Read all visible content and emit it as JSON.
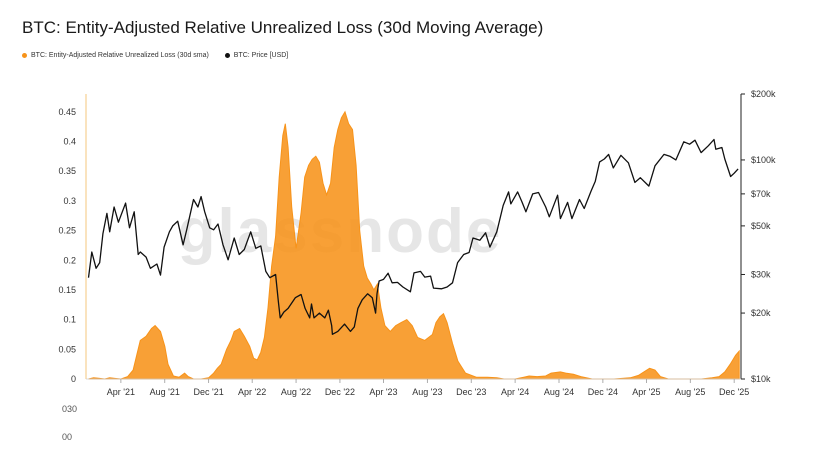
{
  "page": {
    "title": "BTC: Entity-Adjusted Relative Unrealized Loss (30d Moving Average)"
  },
  "watermark": "glassnode",
  "legend": [
    {
      "label": "BTC: Entity-Adjusted Relative Unrealized Loss (30d sma)",
      "color": "#f7931a"
    },
    {
      "label": "BTC: Price [USD]",
      "color": "#111111"
    }
  ],
  "truncated_labels": [
    "030",
    "00"
  ],
  "chart_data": {
    "type": "area",
    "title": "BTC: Entity-Adjusted Relative Unrealized Loss (30d Moving Average)",
    "legend_position": "top-left",
    "grid": false,
    "x_ticks": [
      "Apr '21",
      "Aug '21",
      "Dec '21",
      "Apr '22",
      "Aug '22",
      "Dec '22",
      "Apr '23",
      "Aug '23",
      "Dec '23",
      "Apr '24",
      "Aug '24",
      "Dec '24",
      "Apr '25",
      "Aug '25",
      "Dec '25"
    ],
    "y_left": {
      "ticks": [
        0,
        0.05,
        0.1,
        0.15,
        0.2,
        0.25,
        0.3,
        0.35,
        0.4,
        0.45
      ],
      "lim": [
        0,
        0.48
      ]
    },
    "y_right": {
      "scale": "log",
      "ticks": [
        "$10k",
        "$20k",
        "$30k",
        "$50k",
        "$70k",
        "$100k",
        "$200k"
      ],
      "tick_values": [
        10000,
        20000,
        30000,
        50000,
        70000,
        100000,
        200000
      ],
      "lim": [
        10000,
        200000
      ]
    },
    "series": [
      {
        "name": "BTC: Entity-Adjusted Relative Unrealized Loss (30d sma)",
        "axis": "left",
        "color": "#f7931a",
        "points": [
          [
            "2021-01-01",
            0
          ],
          [
            "2021-01-15",
            0.002
          ],
          [
            "2021-02-01",
            0.001
          ],
          [
            "2021-02-15",
            0
          ],
          [
            "2021-03-01",
            0.002
          ],
          [
            "2021-03-15",
            0.001
          ],
          [
            "2021-04-01",
            0
          ],
          [
            "2021-04-20",
            0.004
          ],
          [
            "2021-05-05",
            0.015
          ],
          [
            "2021-05-15",
            0.04
          ],
          [
            "2021-05-25",
            0.065
          ],
          [
            "2021-06-10",
            0.072
          ],
          [
            "2021-06-25",
            0.085
          ],
          [
            "2021-07-05",
            0.09
          ],
          [
            "2021-07-20",
            0.08
          ],
          [
            "2021-08-01",
            0.055
          ],
          [
            "2021-08-10",
            0.025
          ],
          [
            "2021-08-25",
            0.005
          ],
          [
            "2021-09-10",
            0.003
          ],
          [
            "2021-09-25",
            0.01
          ],
          [
            "2021-10-05",
            0.004
          ],
          [
            "2021-10-20",
            0
          ],
          [
            "2021-11-10",
            0
          ],
          [
            "2021-12-01",
            0.002
          ],
          [
            "2021-12-15",
            0.01
          ],
          [
            "2021-12-25",
            0.018
          ],
          [
            "2022-01-05",
            0.025
          ],
          [
            "2022-01-20",
            0.05
          ],
          [
            "2022-02-01",
            0.065
          ],
          [
            "2022-02-10",
            0.08
          ],
          [
            "2022-02-25",
            0.085
          ],
          [
            "2022-03-10",
            0.072
          ],
          [
            "2022-03-25",
            0.055
          ],
          [
            "2022-04-05",
            0.035
          ],
          [
            "2022-04-15",
            0.032
          ],
          [
            "2022-04-25",
            0.045
          ],
          [
            "2022-05-05",
            0.07
          ],
          [
            "2022-05-15",
            0.12
          ],
          [
            "2022-05-25",
            0.19
          ],
          [
            "2022-06-05",
            0.24
          ],
          [
            "2022-06-15",
            0.34
          ],
          [
            "2022-06-25",
            0.41
          ],
          [
            "2022-07-02",
            0.43
          ],
          [
            "2022-07-10",
            0.39
          ],
          [
            "2022-07-20",
            0.29
          ],
          [
            "2022-08-01",
            0.22
          ],
          [
            "2022-08-15",
            0.28
          ],
          [
            "2022-08-25",
            0.34
          ],
          [
            "2022-09-05",
            0.36
          ],
          [
            "2022-09-15",
            0.37
          ],
          [
            "2022-09-25",
            0.375
          ],
          [
            "2022-10-05",
            0.365
          ],
          [
            "2022-10-15",
            0.33
          ],
          [
            "2022-10-25",
            0.31
          ],
          [
            "2022-11-05",
            0.33
          ],
          [
            "2022-11-15",
            0.39
          ],
          [
            "2022-11-25",
            0.42
          ],
          [
            "2022-12-05",
            0.44
          ],
          [
            "2022-12-15",
            0.45
          ],
          [
            "2022-12-25",
            0.43
          ],
          [
            "2023-01-05",
            0.42
          ],
          [
            "2023-01-15",
            0.36
          ],
          [
            "2023-01-25",
            0.25
          ],
          [
            "2023-02-05",
            0.19
          ],
          [
            "2023-02-15",
            0.17
          ],
          [
            "2023-02-25",
            0.16
          ],
          [
            "2023-03-05",
            0.15
          ],
          [
            "2023-03-15",
            0.16
          ],
          [
            "2023-03-25",
            0.12
          ],
          [
            "2023-04-05",
            0.09
          ],
          [
            "2023-04-20",
            0.08
          ],
          [
            "2023-05-05",
            0.09
          ],
          [
            "2023-05-20",
            0.095
          ],
          [
            "2023-06-05",
            0.1
          ],
          [
            "2023-06-20",
            0.09
          ],
          [
            "2023-07-05",
            0.07
          ],
          [
            "2023-07-25",
            0.065
          ],
          [
            "2023-08-15",
            0.075
          ],
          [
            "2023-08-25",
            0.095
          ],
          [
            "2023-09-05",
            0.105
          ],
          [
            "2023-09-15",
            0.11
          ],
          [
            "2023-09-25",
            0.095
          ],
          [
            "2023-10-10",
            0.06
          ],
          [
            "2023-10-25",
            0.03
          ],
          [
            "2023-11-15",
            0.01
          ],
          [
            "2023-12-15",
            0.003
          ],
          [
            "2024-01-15",
            0.003
          ],
          [
            "2024-02-10",
            0.002
          ],
          [
            "2024-03-01",
            0
          ],
          [
            "2024-04-01",
            0
          ],
          [
            "2024-04-25",
            0.003
          ],
          [
            "2024-05-10",
            0.005
          ],
          [
            "2024-06-01",
            0.004
          ],
          [
            "2024-06-25",
            0.005
          ],
          [
            "2024-07-10",
            0.01
          ],
          [
            "2024-08-05",
            0.012
          ],
          [
            "2024-08-20",
            0.01
          ],
          [
            "2024-09-10",
            0.008
          ],
          [
            "2024-10-01",
            0.004
          ],
          [
            "2024-11-01",
            0
          ],
          [
            "2025-01-01",
            0
          ],
          [
            "2025-02-15",
            0.002
          ],
          [
            "2025-03-10",
            0.006
          ],
          [
            "2025-03-25",
            0.012
          ],
          [
            "2025-04-10",
            0.018
          ],
          [
            "2025-04-25",
            0.015
          ],
          [
            "2025-05-10",
            0.004
          ],
          [
            "2025-06-01",
            0
          ],
          [
            "2025-07-01",
            0
          ],
          [
            "2025-08-01",
            0
          ],
          [
            "2025-09-01",
            0
          ],
          [
            "2025-10-01",
            0.002
          ],
          [
            "2025-10-20",
            0.004
          ],
          [
            "2025-11-05",
            0.012
          ],
          [
            "2025-11-20",
            0.025
          ],
          [
            "2025-12-05",
            0.04
          ],
          [
            "2025-12-15",
            0.047
          ]
        ]
      },
      {
        "name": "BTC: Price [USD]",
        "axis": "right",
        "color": "#111111",
        "points": [
          [
            "2021-01-01",
            29000
          ],
          [
            "2021-01-10",
            38000
          ],
          [
            "2021-01-22",
            32000
          ],
          [
            "2021-02-01",
            34000
          ],
          [
            "2021-02-10",
            46000
          ],
          [
            "2021-02-21",
            57000
          ],
          [
            "2021-03-01",
            47000
          ],
          [
            "2021-03-13",
            61000
          ],
          [
            "2021-03-25",
            52000
          ],
          [
            "2021-04-14",
            63500
          ],
          [
            "2021-04-25",
            49000
          ],
          [
            "2021-05-08",
            58000
          ],
          [
            "2021-05-19",
            37000
          ],
          [
            "2021-05-25",
            38000
          ],
          [
            "2021-06-10",
            36000
          ],
          [
            "2021-06-22",
            32000
          ],
          [
            "2021-07-10",
            33500
          ],
          [
            "2021-07-20",
            29800
          ],
          [
            "2021-07-30",
            40000
          ],
          [
            "2021-08-14",
            47000
          ],
          [
            "2021-08-23",
            50000
          ],
          [
            "2021-09-06",
            52500
          ],
          [
            "2021-09-21",
            41000
          ],
          [
            "2021-10-01",
            48000
          ],
          [
            "2021-10-20",
            66000
          ],
          [
            "2021-11-01",
            61000
          ],
          [
            "2021-11-10",
            68000
          ],
          [
            "2021-11-20",
            58000
          ],
          [
            "2021-12-04",
            49000
          ],
          [
            "2021-12-15",
            48000
          ],
          [
            "2021-12-27",
            51000
          ],
          [
            "2022-01-10",
            41000
          ],
          [
            "2022-01-24",
            35000
          ],
          [
            "2022-02-10",
            44000
          ],
          [
            "2022-02-24",
            37000
          ],
          [
            "2022-03-10",
            39000
          ],
          [
            "2022-03-28",
            47000
          ],
          [
            "2022-04-11",
            39500
          ],
          [
            "2022-04-25",
            40500
          ],
          [
            "2022-05-09",
            31000
          ],
          [
            "2022-05-20",
            29000
          ],
          [
            "2022-06-05",
            30000
          ],
          [
            "2022-06-13",
            22500
          ],
          [
            "2022-06-18",
            19000
          ],
          [
            "2022-06-28",
            20200
          ],
          [
            "2022-07-10",
            21000
          ],
          [
            "2022-07-30",
            23500
          ],
          [
            "2022-08-15",
            24300
          ],
          [
            "2022-08-26",
            21000
          ],
          [
            "2022-09-08",
            19000
          ],
          [
            "2022-09-13",
            22000
          ],
          [
            "2022-09-20",
            19000
          ],
          [
            "2022-10-05",
            20000
          ],
          [
            "2022-10-20",
            19000
          ],
          [
            "2022-10-30",
            20600
          ],
          [
            "2022-11-08",
            17500
          ],
          [
            "2022-11-10",
            16000
          ],
          [
            "2022-11-25",
            16500
          ],
          [
            "2022-12-14",
            17800
          ],
          [
            "2022-12-30",
            16500
          ],
          [
            "2023-01-10",
            17300
          ],
          [
            "2023-01-20",
            21000
          ],
          [
            "2023-02-01",
            23000
          ],
          [
            "2023-02-16",
            24500
          ],
          [
            "2023-03-01",
            23500
          ],
          [
            "2023-03-10",
            20000
          ],
          [
            "2023-03-14",
            24500
          ],
          [
            "2023-03-20",
            28000
          ],
          [
            "2023-04-01",
            28500
          ],
          [
            "2023-04-14",
            30400
          ],
          [
            "2023-04-25",
            27500
          ],
          [
            "2023-05-10",
            27600
          ],
          [
            "2023-05-25",
            26300
          ],
          [
            "2023-06-15",
            25000
          ],
          [
            "2023-06-25",
            30500
          ],
          [
            "2023-07-13",
            31000
          ],
          [
            "2023-07-25",
            29200
          ],
          [
            "2023-08-10",
            29500
          ],
          [
            "2023-08-18",
            26000
          ],
          [
            "2023-09-10",
            25800
          ],
          [
            "2023-09-25",
            26300
          ],
          [
            "2023-10-10",
            27500
          ],
          [
            "2023-10-24",
            34000
          ],
          [
            "2023-11-10",
            37000
          ],
          [
            "2023-11-25",
            37800
          ],
          [
            "2023-12-06",
            44000
          ],
          [
            "2023-12-25",
            43000
          ],
          [
            "2024-01-10",
            46500
          ],
          [
            "2024-01-22",
            40000
          ],
          [
            "2024-02-10",
            47000
          ],
          [
            "2024-02-28",
            62000
          ],
          [
            "2024-03-14",
            71500
          ],
          [
            "2024-03-20",
            63000
          ],
          [
            "2024-04-08",
            71500
          ],
          [
            "2024-04-20",
            64500
          ],
          [
            "2024-05-01",
            58000
          ],
          [
            "2024-05-20",
            70000
          ],
          [
            "2024-06-05",
            71000
          ],
          [
            "2024-06-25",
            61000
          ],
          [
            "2024-07-05",
            55000
          ],
          [
            "2024-07-28",
            69000
          ],
          [
            "2024-08-05",
            54000
          ],
          [
            "2024-08-25",
            64000
          ],
          [
            "2024-09-06",
            54000
          ],
          [
            "2024-09-27",
            66000
          ],
          [
            "2024-10-10",
            60000
          ],
          [
            "2024-10-29",
            72000
          ],
          [
            "2024-11-10",
            80000
          ],
          [
            "2024-11-22",
            98000
          ],
          [
            "2024-12-05",
            101000
          ],
          [
            "2024-12-17",
            106000
          ],
          [
            "2024-12-30",
            92000
          ],
          [
            "2025-01-20",
            105000
          ],
          [
            "2025-02-10",
            97000
          ],
          [
            "2025-02-28",
            79000
          ],
          [
            "2025-03-15",
            83000
          ],
          [
            "2025-04-08",
            76000
          ],
          [
            "2025-04-25",
            94000
          ],
          [
            "2025-05-20",
            106000
          ],
          [
            "2025-06-05",
            104000
          ],
          [
            "2025-06-22",
            100000
          ],
          [
            "2025-07-14",
            121000
          ],
          [
            "2025-07-30",
            118000
          ],
          [
            "2025-08-14",
            123000
          ],
          [
            "2025-08-31",
            108000
          ],
          [
            "2025-09-20",
            116000
          ],
          [
            "2025-10-06",
            124000
          ],
          [
            "2025-10-11",
            112000
          ],
          [
            "2025-10-28",
            114000
          ],
          [
            "2025-11-05",
            101000
          ],
          [
            "2025-11-21",
            84000
          ],
          [
            "2025-12-01",
            87000
          ],
          [
            "2025-12-12",
            91000
          ]
        ]
      }
    ]
  }
}
